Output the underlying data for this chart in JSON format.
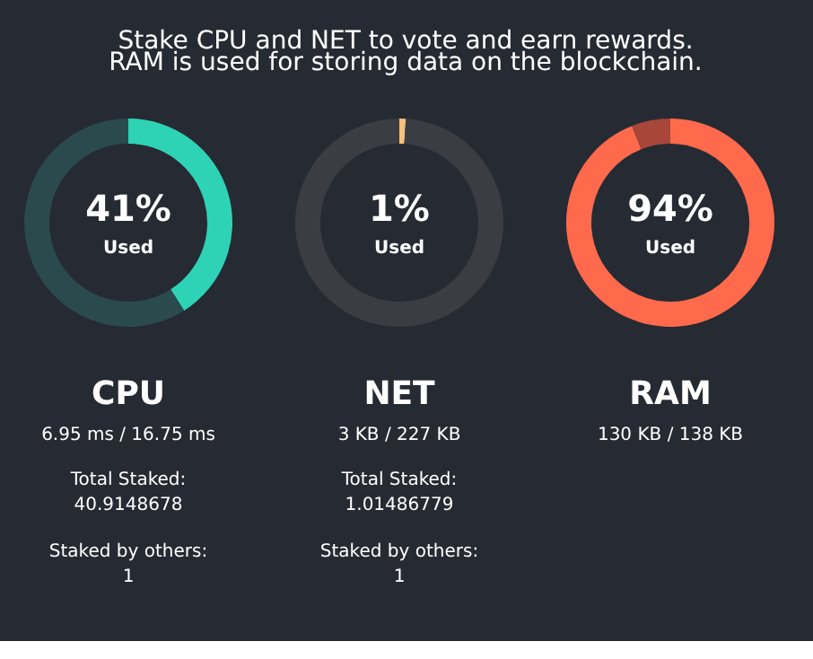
{
  "chart_data": [
    {
      "type": "other",
      "title": "Stake CPU and NET to vote and earn rewards.",
      "subtitle": "RAM is used for storing data on the blockchain."
    },
    {
      "type": "donut",
      "title": "CPU",
      "categories": [
        "Used",
        null
      ],
      "values": [
        41,
        59
      ],
      "colors": [
        "#2ed3b5",
        "#2a4a4d"
      ],
      "value_labels": [
        "41%",
        null
      ],
      "annotations": [
        "6.95 ms / 16.75 ms",
        "Total Staked:",
        "40.9148678",
        "Staked by others:",
        "1"
      ]
    },
    {
      "type": "donut",
      "title": "NET",
      "categories": [
        "Used",
        null
      ],
      "values": [
        1,
        99
      ],
      "colors": [
        "#f5c27c",
        "#3a3d44"
      ],
      "value_labels": [
        "1%",
        null
      ],
      "annotations": [
        "3 KB / 227 KB",
        "Total Staked:",
        "1.01486779",
        "Staked by others:",
        "1"
      ]
    },
    {
      "type": "donut",
      "title": "RAM",
      "categories": [
        "Used",
        null
      ],
      "values": [
        94,
        6
      ],
      "colors": [
        "#ff6a4d",
        "#a8463a"
      ],
      "value_labels": [
        "94%",
        null
      ],
      "annotations": [
        "130 KB / 138 KB"
      ]
    }
  ]
}
